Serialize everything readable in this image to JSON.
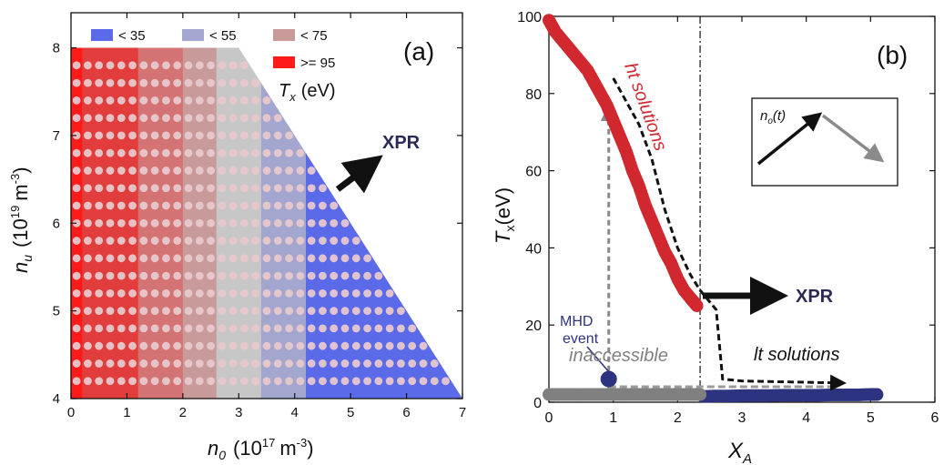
{
  "chart_data": [
    {
      "panel_label": "(a)",
      "type": "scatter",
      "xlabel": "n",
      "xlabel_sub": "0",
      "xlabel_units": "(10",
      "xlabel_exp": "17",
      "xlabel_units_end": "m",
      "xlabel_units_exp": "-3",
      "xlabel_close": ")",
      "ylabel": "n",
      "ylabel_sub": "u",
      "ylabel_units": "(10",
      "ylabel_exp": "19",
      "ylabel_units_end": "m",
      "ylabel_units_exp": "-3",
      "ylabel_close": ")",
      "xlim": [
        0,
        7
      ],
      "ylim": [
        4,
        8.4
      ],
      "xticks": [
        "0",
        "1",
        "2",
        "3",
        "4",
        "5",
        "6",
        "7"
      ],
      "yticks": [
        "4",
        "5",
        "6",
        "7",
        "8"
      ],
      "legend": {
        "title_var": "T",
        "title_sub": "x",
        "title_units": "(eV)",
        "entries": [
          {
            "label": "< 35",
            "color": "#5b6ae8"
          },
          {
            "label": "< 55",
            "color": "#a3a6cf"
          },
          {
            "label": "< 75",
            "color": "#c99a9a"
          },
          {
            "label": ">= 95",
            "color": "#ff1a1a"
          }
        ]
      },
      "annotation": "XPR",
      "region_bands": [
        {
          "x0": 0.0,
          "x1": 0.2,
          "color": "#ff1a1a"
        },
        {
          "x0": 0.2,
          "x1": 1.2,
          "color": "#e23d3d"
        },
        {
          "x0": 1.2,
          "x1": 2.0,
          "color": "#d47373"
        },
        {
          "x0": 2.0,
          "x1": 2.6,
          "color": "#c99a9a"
        },
        {
          "x0": 2.6,
          "x1": 3.4,
          "color": "#c7c7c7"
        },
        {
          "x0": 3.4,
          "x1": 4.2,
          "color": "#a3a6cf"
        },
        {
          "x0": 4.2,
          "x1": 7.0,
          "color": "#5b6ae8"
        }
      ],
      "boundary": [
        [
          0,
          8
        ],
        [
          3.0,
          8
        ],
        [
          7.0,
          4
        ],
        [
          0,
          4
        ]
      ],
      "points_grid": {
        "x_start": 0.1,
        "x_step": 0.2,
        "y_start": 4.2,
        "y_step": 0.2,
        "color": "#e8c8cc"
      }
    },
    {
      "panel_label": "(b)",
      "type": "scatter",
      "xlabel": "X",
      "xlabel_sub": "A",
      "ylabel": "T",
      "ylabel_sub": "x",
      "ylabel_units": "(eV)",
      "xlim": [
        0,
        6
      ],
      "ylim": [
        0,
        100
      ],
      "xticks": [
        "0",
        "1",
        "2",
        "3",
        "4",
        "5",
        "6"
      ],
      "yticks": [
        "0",
        "20",
        "40",
        "60",
        "80",
        "100"
      ],
      "vline_x": 2.35,
      "series": [
        {
          "name": "ht solutions",
          "color": "#d0282e",
          "x": [
            0.0,
            0.1,
            0.2,
            0.3,
            0.4,
            0.5,
            0.6,
            0.7,
            0.8,
            0.9,
            1.0,
            1.1,
            1.2,
            1.3,
            1.4,
            1.5,
            1.6,
            1.7,
            1.8,
            1.9,
            2.0,
            2.1,
            2.2,
            2.25,
            2.3
          ],
          "y": [
            99,
            96,
            94,
            92,
            90,
            88,
            86,
            83,
            80,
            77,
            73,
            69,
            65,
            60,
            56,
            51,
            47,
            43,
            39,
            36,
            32,
            29,
            27,
            26,
            25
          ]
        },
        {
          "name": "lt solutions",
          "color": "#2e3380",
          "x": [
            2.4,
            2.6,
            2.8,
            3.0,
            3.2,
            3.4,
            3.6,
            3.8,
            4.0,
            4.2,
            4.4,
            4.6,
            4.8,
            5.0,
            5.1
          ],
          "y": [
            1.5,
            1.6,
            1.6,
            1.7,
            1.7,
            1.7,
            1.8,
            1.8,
            1.8,
            1.8,
            1.9,
            1.9,
            1.9,
            2.0,
            2.0
          ]
        },
        {
          "name": "inaccessible",
          "color": "#808080",
          "x": [
            0.0,
            0.2,
            0.4,
            0.6,
            0.8,
            1.0,
            1.2,
            1.4,
            1.6,
            1.8,
            2.0,
            2.2,
            2.35
          ],
          "y": [
            2.0,
            2.0,
            2.0,
            2.0,
            2.0,
            2.0,
            2.0,
            2.0,
            2.0,
            2.0,
            2.0,
            2.0,
            2.0
          ]
        }
      ],
      "dashed_path": {
        "x": [
          1.0,
          1.2,
          1.4,
          1.6,
          1.8,
          2.0,
          2.2,
          2.35,
          2.5,
          2.6,
          2.7,
          3.0,
          4.5
        ],
        "y": [
          84,
          78,
          72,
          63,
          50,
          40,
          33,
          29,
          26,
          24,
          6,
          5.5,
          5
        ]
      },
      "gray_arrow_x": 0.93,
      "gray_arrow_y": [
        1,
        75
      ],
      "gray_horizontal_y": 4,
      "mhd_event": {
        "x": 0.93,
        "y": 6,
        "label_line1": "MHD",
        "label_line2": "event"
      },
      "annotation_xpr": "XPR",
      "inset": {
        "label": "n",
        "label_sub": "o",
        "label_arg": "(t)"
      },
      "label_ht": "ht solutions",
      "label_lt": "lt solutions",
      "label_inaccessible": "inaccessible"
    }
  ]
}
